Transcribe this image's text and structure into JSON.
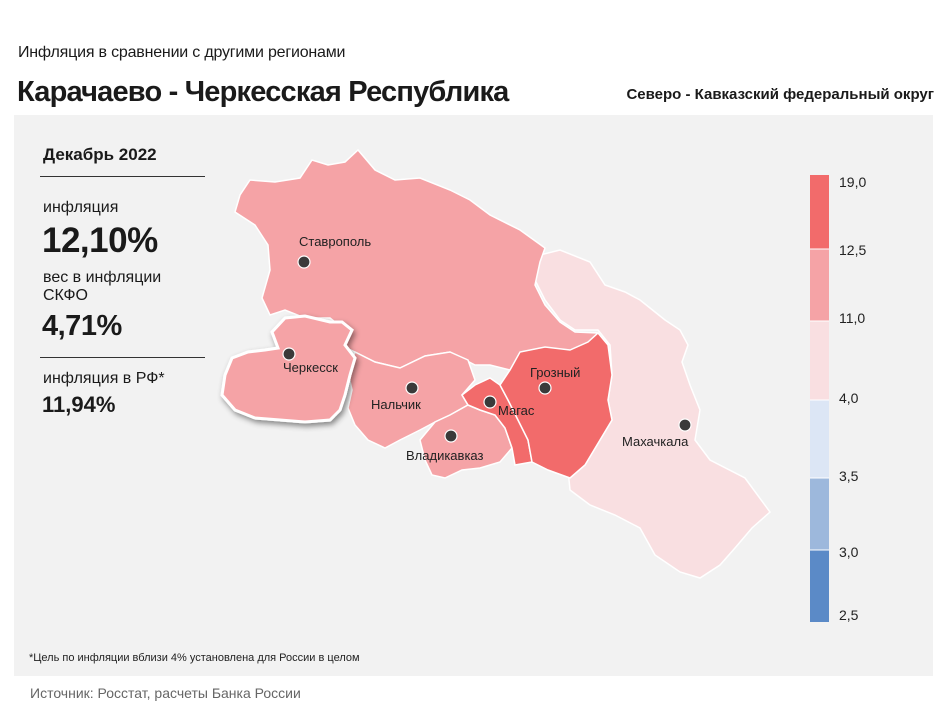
{
  "header": {
    "subtitle": "Инфляция  в сравнении  с другими  регионами",
    "title": "Карачаево - Черкесская Республика",
    "district": "Северо - Кавказский федеральный округ"
  },
  "stats": {
    "period": "Декабрь 2022",
    "inflation_label": "инфляция",
    "inflation_value": "12,10%",
    "weight_label": "вес в инфляции  СКФО",
    "weight_value": "4,71%",
    "rf_label": "инфляция  в РФ*",
    "rf_value": "11,94%"
  },
  "map": {
    "cities": [
      {
        "name": "Ставрополь"
      },
      {
        "name": "Черкесск"
      },
      {
        "name": "Нальчик"
      },
      {
        "name": "Магас"
      },
      {
        "name": "Грозный"
      },
      {
        "name": "Владикавказ"
      },
      {
        "name": "Махачкала"
      }
    ],
    "colors": {
      "highest": "#f26b6b",
      "high": "#f5a3a6",
      "mid": "#f9dfe1",
      "low": "#dce6f5",
      "lower": "#9db8dc",
      "lowest": "#5b8ac7"
    },
    "legend": [
      "19,0",
      "12,5",
      "11,0",
      "4,0",
      "3,5",
      "3,0",
      "2,5"
    ]
  },
  "footnote": "*Цель по инфляции вблизи 4% установлена для России в целом",
  "source": "Источник: Росстат, расчеты Банка России"
}
